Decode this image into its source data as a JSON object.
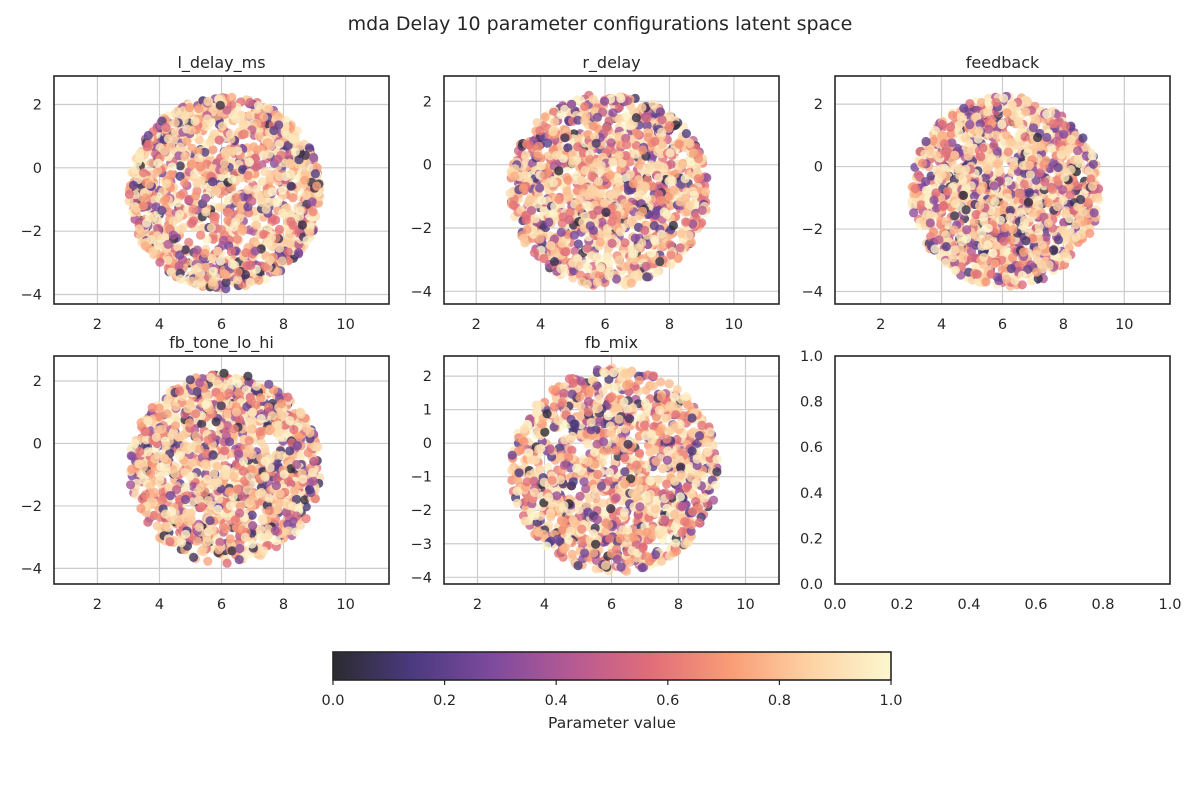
{
  "figure": {
    "title": "mda Delay 10 parameter configurations latent space"
  },
  "chart_data": {
    "type": "scatter",
    "colormap": "magma",
    "colormap_stops": [
      "#2b2b2f",
      "#4b3a80",
      "#7e4a9e",
      "#b55a93",
      "#e26d78",
      "#f99d76",
      "#fdd3a4",
      "#fcf7cf"
    ],
    "point_alpha": 0.8,
    "point_cloud": {
      "center_x": 6.1,
      "center_y": -0.8,
      "radius_x": 3.1,
      "radius_y": 3.05,
      "points": 1400
    },
    "panels": [
      {
        "title": "l_delay_ms",
        "xlim": [
          0.6,
          11.4
        ],
        "ylim": [
          -4.3,
          2.9
        ],
        "xticks": [
          2,
          4,
          6,
          8,
          10
        ],
        "yticks": [
          -4,
          -2,
          0,
          2
        ],
        "xtick_labels": [
          "2",
          "4",
          "6",
          "8",
          "10"
        ],
        "ytick_labels": [
          "−4",
          "−2",
          "0",
          "2"
        ],
        "grid": true,
        "data_shape": "ring",
        "seed": 11
      },
      {
        "title": "r_delay",
        "xlim": [
          1.0,
          11.4
        ],
        "ylim": [
          -4.4,
          2.8
        ],
        "xticks": [
          2,
          4,
          6,
          8,
          10
        ],
        "yticks": [
          -4,
          -2,
          0,
          2
        ],
        "xtick_labels": [
          "2",
          "4",
          "6",
          "8",
          "10"
        ],
        "ytick_labels": [
          "−4",
          "−2",
          "0",
          "2"
        ],
        "grid": true,
        "data_shape": "disk",
        "seed": 23
      },
      {
        "title": "feedback",
        "xlim": [
          0.5,
          11.5
        ],
        "ylim": [
          -4.4,
          2.9
        ],
        "xticks": [
          2,
          4,
          6,
          8,
          10
        ],
        "yticks": [
          -4,
          -2,
          0,
          2
        ],
        "xtick_labels": [
          "2",
          "4",
          "6",
          "8",
          "10"
        ],
        "ytick_labels": [
          "−4",
          "−2",
          "0",
          "2"
        ],
        "grid": true,
        "data_shape": "disk",
        "seed": 37
      },
      {
        "title": "fb_tone_lo_hi",
        "xlim": [
          0.6,
          11.4
        ],
        "ylim": [
          -4.5,
          2.8
        ],
        "xticks": [
          2,
          4,
          6,
          8,
          10
        ],
        "yticks": [
          -4,
          -2,
          0,
          2
        ],
        "xtick_labels": [
          "2",
          "4",
          "6",
          "8",
          "10"
        ],
        "ytick_labels": [
          "−4",
          "−2",
          "0",
          "2"
        ],
        "grid": true,
        "data_shape": "disk",
        "seed": 41
      },
      {
        "title": "fb_mix",
        "xlim": [
          1.0,
          11.0
        ],
        "ylim": [
          -4.2,
          2.6
        ],
        "xticks": [
          2,
          4,
          6,
          8,
          10
        ],
        "yticks": [
          -4,
          -3,
          -2,
          -1,
          0,
          1,
          2
        ],
        "xtick_labels": [
          "2",
          "4",
          "6",
          "8",
          "10"
        ],
        "ytick_labels": [
          "−4",
          "−3",
          "−2",
          "−1",
          "0",
          "1",
          "2"
        ],
        "grid": true,
        "data_shape": "disk",
        "seed": 53
      },
      {
        "title": "",
        "xlim": [
          0,
          1
        ],
        "ylim": [
          0,
          1
        ],
        "xticks": [
          0,
          0.2,
          0.4,
          0.6,
          0.8,
          1.0
        ],
        "yticks": [
          0,
          0.2,
          0.4,
          0.6,
          0.8,
          1.0
        ],
        "xtick_labels": [
          "0.0",
          "0.2",
          "0.4",
          "0.6",
          "0.8",
          "1.0"
        ],
        "ytick_labels": [
          "0.0",
          "0.2",
          "0.4",
          "0.6",
          "0.8",
          "1.0"
        ],
        "grid": false,
        "data_shape": "empty"
      }
    ],
    "colorbar": {
      "label": "Parameter value",
      "range": [
        0,
        1
      ],
      "ticks": [
        0,
        0.2,
        0.4,
        0.6,
        0.8,
        1.0
      ],
      "tick_labels": [
        "0.0",
        "0.2",
        "0.4",
        "0.6",
        "0.8",
        "1.0"
      ],
      "orientation": "horizontal"
    }
  }
}
